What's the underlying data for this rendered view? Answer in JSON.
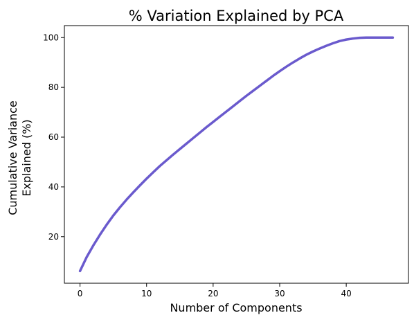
{
  "chart_data": {
    "type": "line",
    "title": "% Variation Explained by PCA",
    "xlabel": "Number of Components",
    "ylabel_lines": [
      "Cumulative Variance",
      "Explained (%)"
    ],
    "xlim": [
      -2.35,
      49.35
    ],
    "ylim": [
      1.3,
      104.8
    ],
    "xticks": [
      0,
      10,
      20,
      30,
      40
    ],
    "yticks": [
      20,
      40,
      60,
      80,
      100
    ],
    "grid": false,
    "series": [
      {
        "color": "#6a5acd",
        "x": [
          0,
          1,
          2,
          3,
          4,
          5,
          6,
          7,
          8,
          9,
          10,
          11,
          12,
          13,
          14,
          15,
          16,
          17,
          18,
          19,
          20,
          21,
          22,
          23,
          24,
          25,
          26,
          27,
          28,
          29,
          30,
          31,
          32,
          33,
          34,
          35,
          36,
          37,
          38,
          39,
          40,
          41,
          42,
          43,
          44,
          45,
          46,
          47
        ],
        "values": [
          6.2,
          11.8,
          16.5,
          20.8,
          24.8,
          28.5,
          31.8,
          34.9,
          37.8,
          40.6,
          43.3,
          45.9,
          48.4,
          50.7,
          53.0,
          55.2,
          57.4,
          59.6,
          61.8,
          64.0,
          66.1,
          68.2,
          70.3,
          72.4,
          74.5,
          76.6,
          78.6,
          80.6,
          82.6,
          84.6,
          86.5,
          88.3,
          90.0,
          91.6,
          93.1,
          94.4,
          95.6,
          96.7,
          97.7,
          98.6,
          99.2,
          99.6,
          99.9,
          100.0,
          100.0,
          100.0,
          100.0,
          100.0
        ]
      }
    ]
  }
}
